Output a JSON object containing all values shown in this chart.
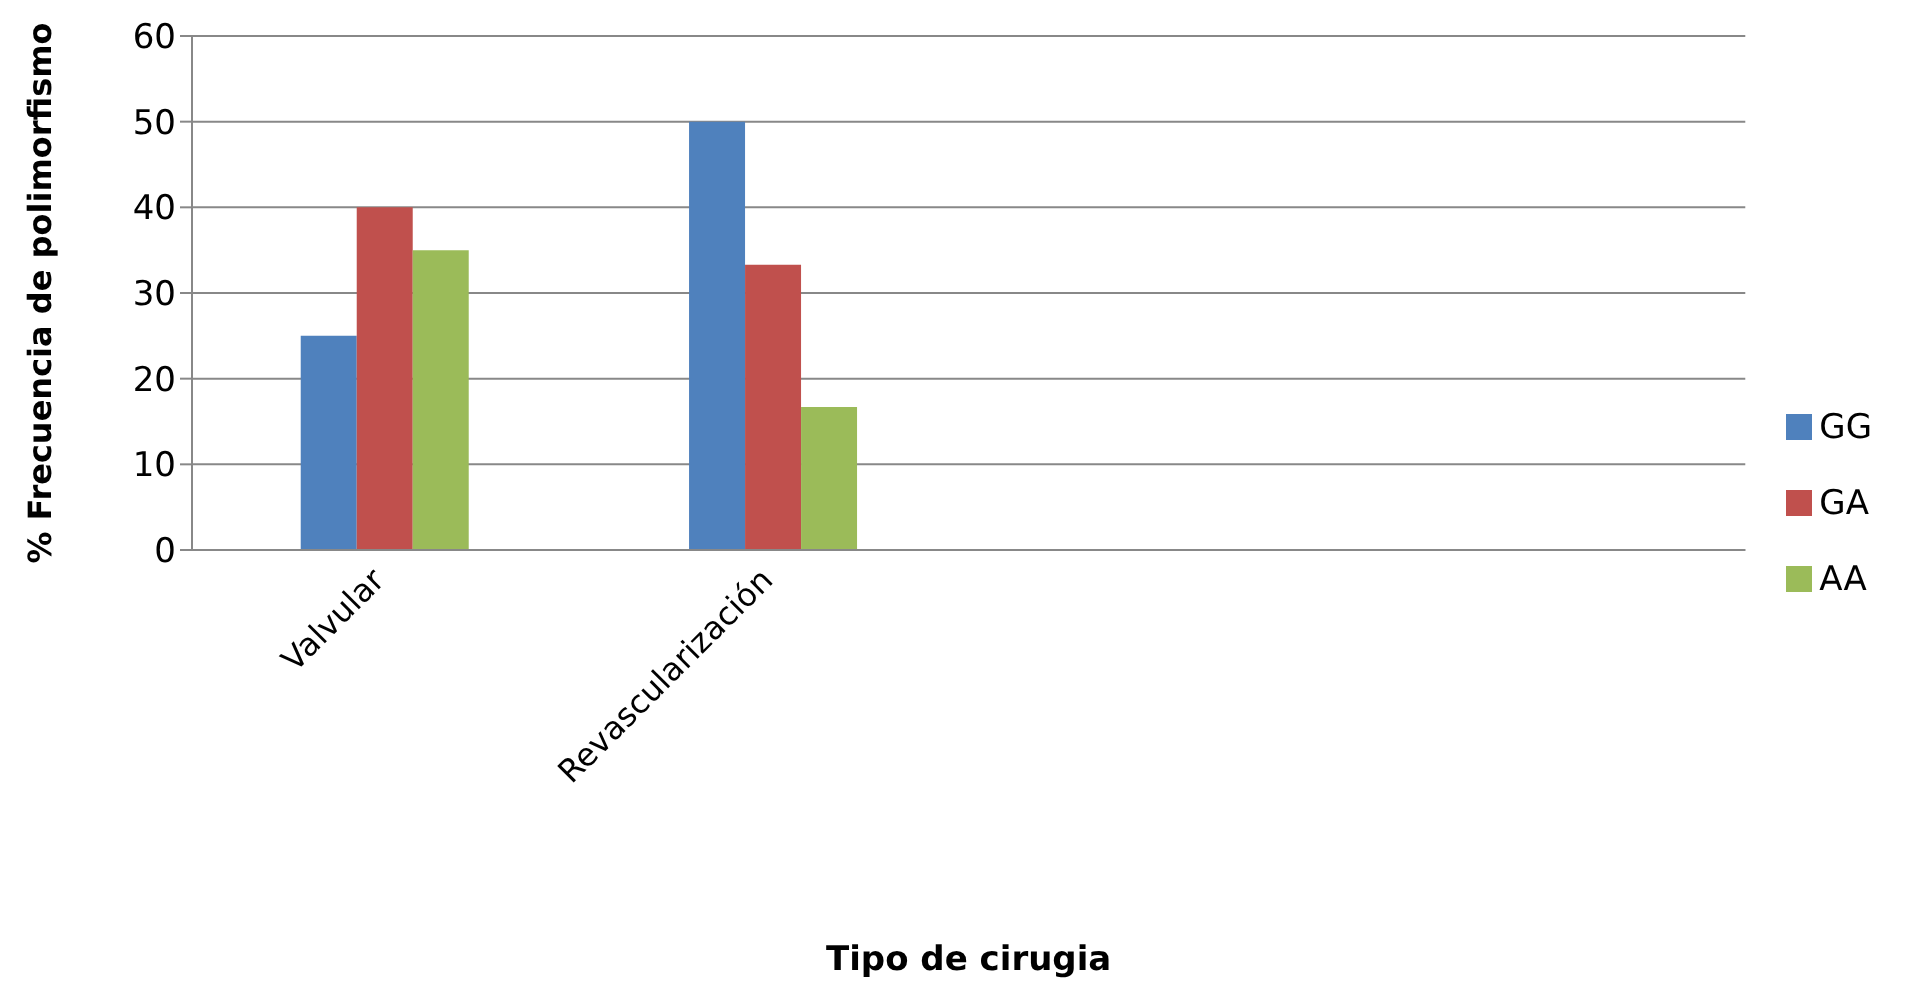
{
  "chart_data": {
    "type": "bar",
    "xlabel": "Tipo de cirugia",
    "ylabel": "% Frecuencia  de polimorfismo",
    "categories": [
      "Valvular",
      "Revascularización",
      null,
      null
    ],
    "series": [
      {
        "name": "GG",
        "color": "#4f81bd",
        "values": [
          25,
          50,
          null,
          null
        ]
      },
      {
        "name": "GA",
        "color": "#c0504d",
        "values": [
          40,
          33.3,
          null,
          null
        ]
      },
      {
        "name": "AA",
        "color": "#9bbb59",
        "values": [
          35,
          16.7,
          null,
          null
        ]
      }
    ],
    "ylim": [
      0,
      60
    ],
    "yticks": [
      0,
      10,
      20,
      30,
      40,
      50,
      60
    ],
    "grid": "y",
    "legend": "right"
  }
}
